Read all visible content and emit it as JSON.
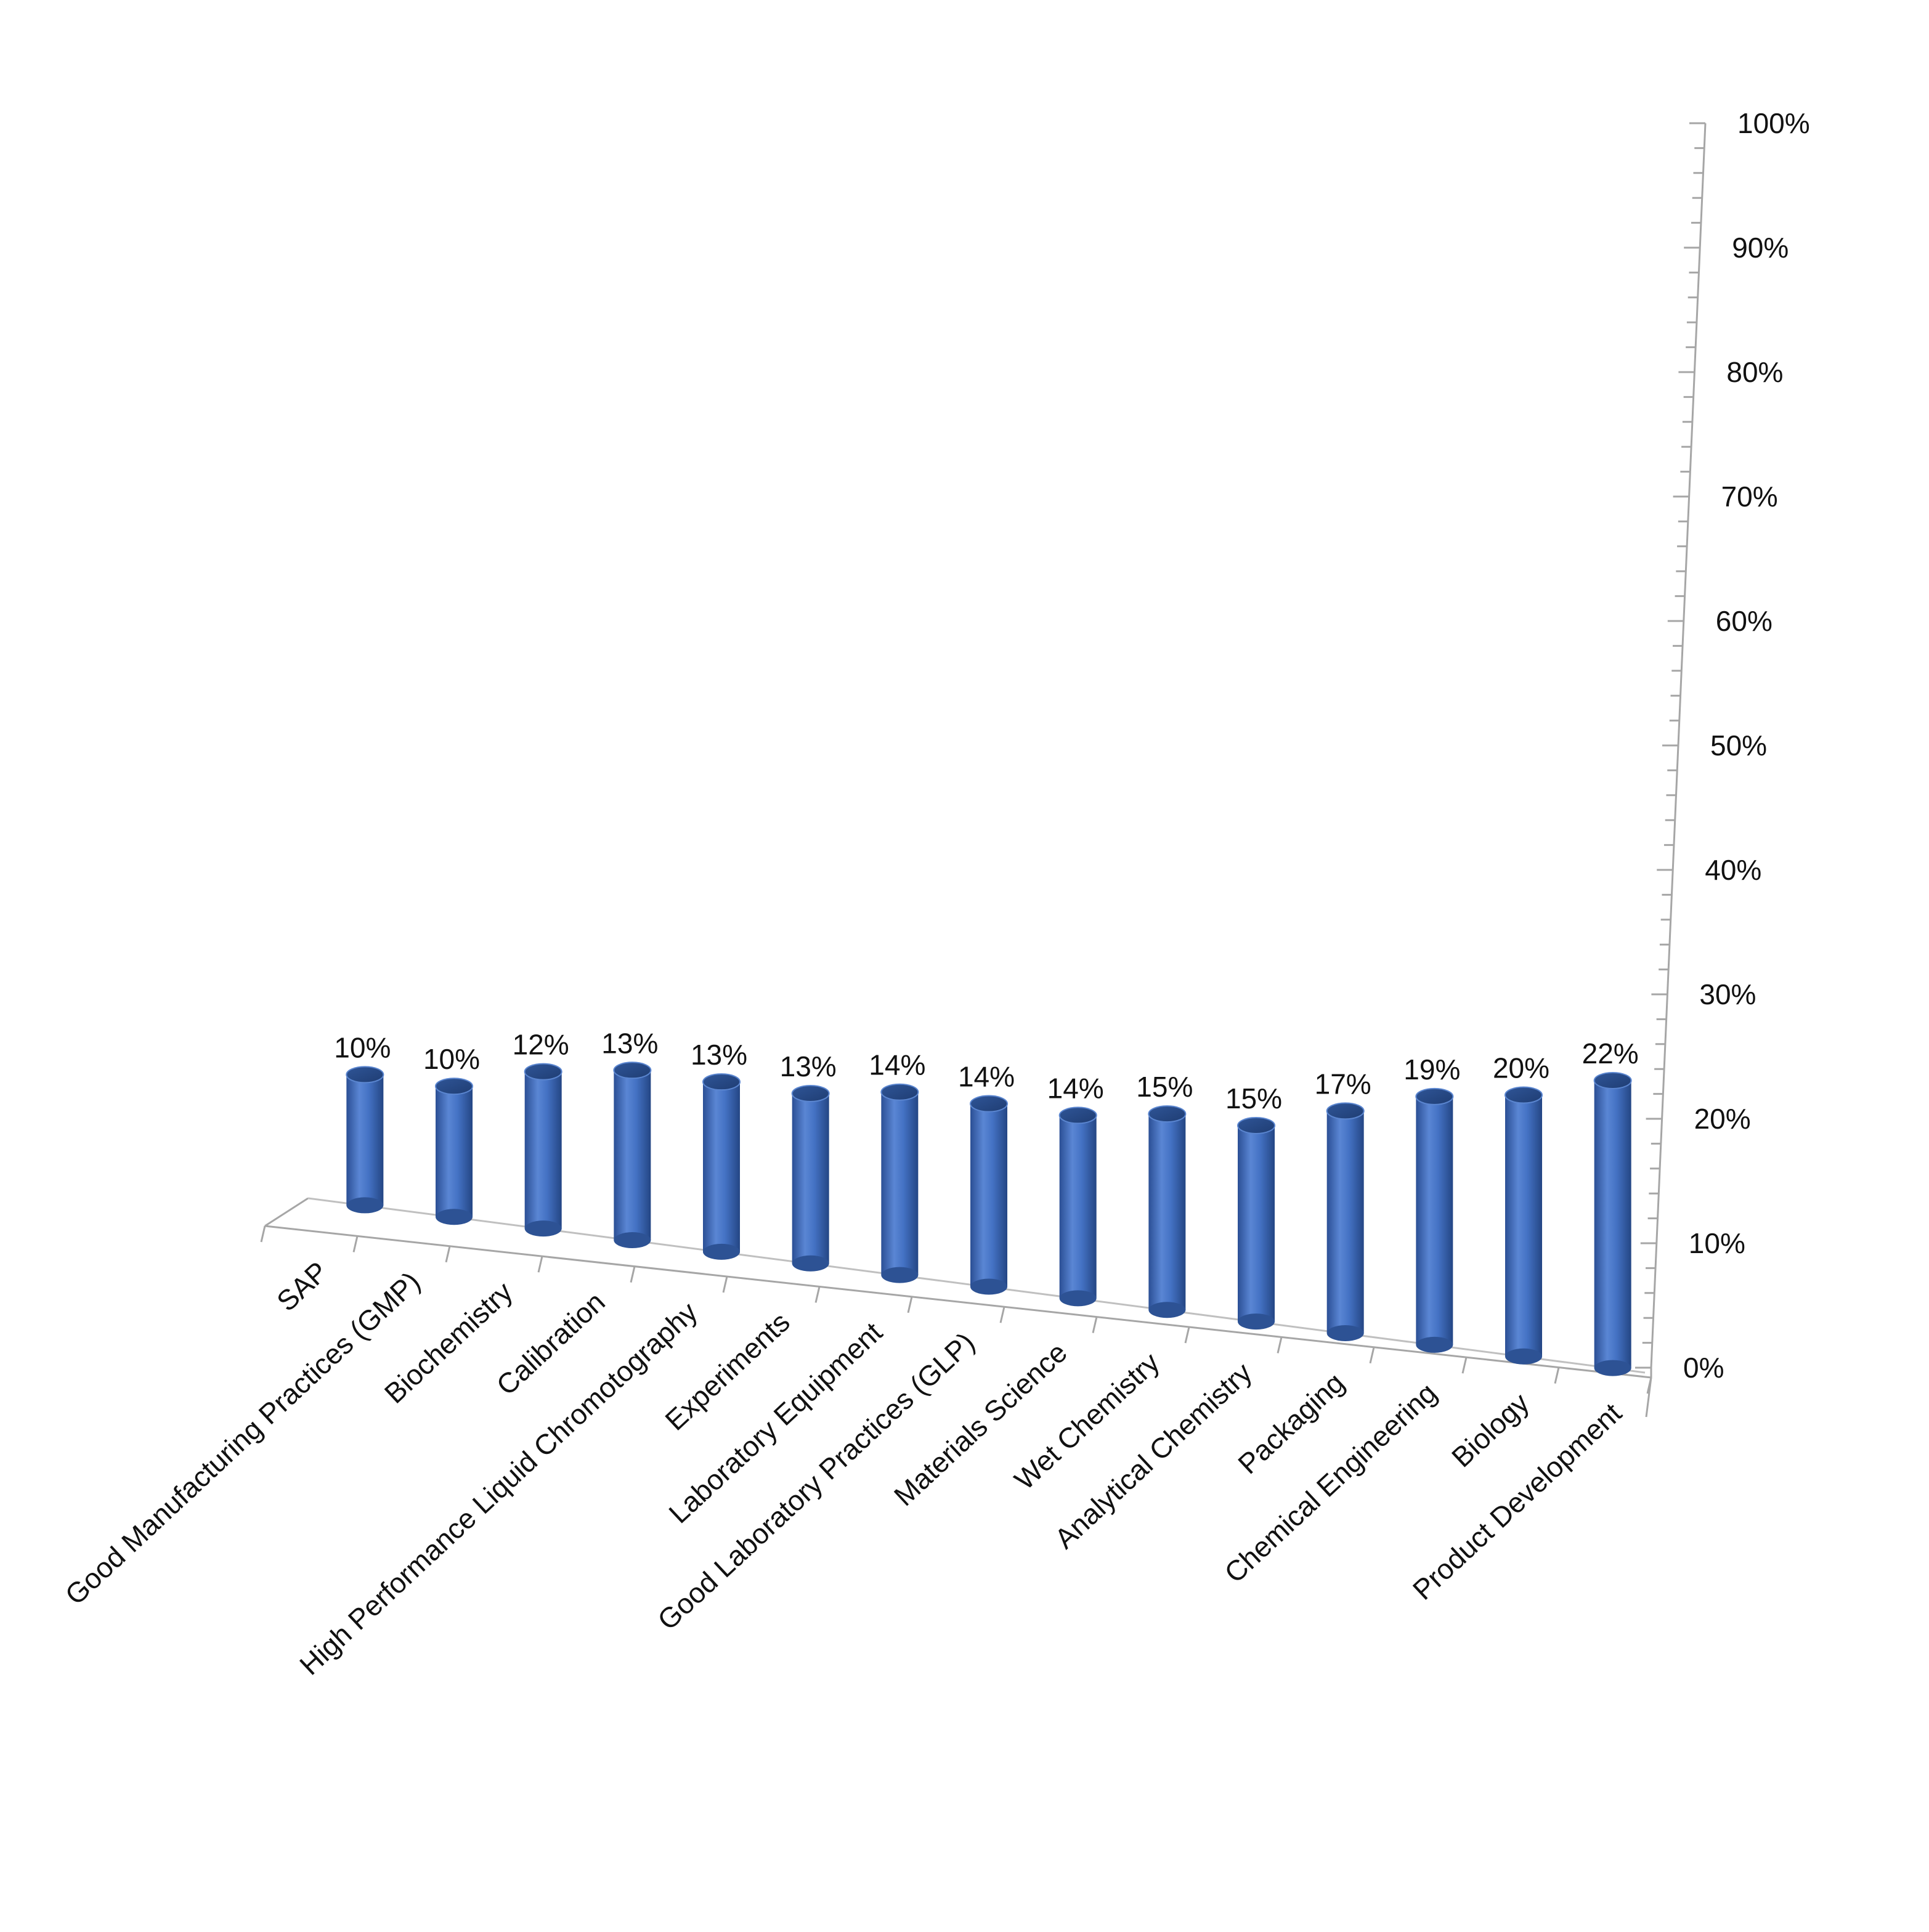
{
  "chart_data": {
    "type": "bar",
    "style": "3d-cylinder",
    "categories": [
      "SAP",
      "Good Manufacturing Practices (GMP)",
      "Biochemistry",
      "Calibration",
      "High Performance Liquid Chromotography",
      "Experiments",
      "Laboratory Equipment",
      "Good Laboratory Practices (GLP)",
      "Materials Science",
      "Wet Chemistry",
      "Analytical Chemistry",
      "Packaging",
      "Chemical Engineering",
      "Biology",
      "Product Development"
    ],
    "values": [
      10,
      10,
      12,
      13,
      13,
      13,
      14,
      14,
      14,
      15,
      15,
      17,
      19,
      20,
      22
    ],
    "data_labels": [
      "10%",
      "10%",
      "12%",
      "13%",
      "13%",
      "13%",
      "14%",
      "14%",
      "14%",
      "15%",
      "15%",
      "17%",
      "19%",
      "20%",
      "22%"
    ],
    "ylim": [
      0,
      100
    ],
    "y_ticks": [
      "0%",
      "10%",
      "20%",
      "30%",
      "40%",
      "50%",
      "60%",
      "70%",
      "80%",
      "90%",
      "100%"
    ],
    "y_axis_position": "right",
    "bar_color": "#4472C4",
    "grid": false,
    "legend": "none"
  }
}
